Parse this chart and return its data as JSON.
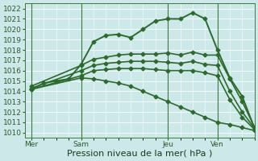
{
  "xlabel": "Pression niveau de la mer( hPa )",
  "bg_color": "#cce8e8",
  "grid_color": "#ffffff",
  "line_color": "#2d6a2d",
  "ylim": [
    1009.5,
    1022.5
  ],
  "yticks": [
    1010,
    1011,
    1012,
    1013,
    1014,
    1015,
    1016,
    1017,
    1018,
    1019,
    1020,
    1021,
    1022
  ],
  "xtick_labels": [
    "Mer",
    "Sam",
    "Jeu",
    "Ven"
  ],
  "xtick_positions": [
    0,
    4,
    11,
    15
  ],
  "vlines": [
    0,
    4,
    11,
    15
  ],
  "xlim": [
    -0.5,
    18
  ],
  "series": [
    {
      "x": [
        0,
        1,
        2,
        3,
        4,
        5,
        6,
        7,
        8,
        9,
        10,
        11,
        12,
        13,
        14,
        15,
        16,
        17,
        18
      ],
      "y": [
        1014.2,
        1014.8,
        1015.0,
        1015.2,
        1016.6,
        1018.8,
        1019.4,
        1019.5,
        1019.2,
        1020.0,
        1020.8,
        1021.0,
        1021.0,
        1021.6,
        1021.0,
        1018.0,
        1015.3,
        1013.5,
        1010.4
      ],
      "marker": "D",
      "markersize": 2.5,
      "linewidth": 1.4
    },
    {
      "x": [
        0,
        4,
        5,
        6,
        7,
        8,
        9,
        10,
        11,
        12,
        13,
        14,
        15,
        16,
        17,
        18
      ],
      "y": [
        1014.5,
        1016.5,
        1017.1,
        1017.3,
        1017.5,
        1017.6,
        1017.6,
        1017.6,
        1017.7,
        1017.5,
        1017.8,
        1017.5,
        1017.5,
        1015.2,
        1013.0,
        1010.5
      ],
      "marker": "D",
      "markersize": 2.5,
      "linewidth": 1.2
    },
    {
      "x": [
        0,
        4,
        5,
        6,
        7,
        8,
        9,
        10,
        11,
        12,
        13,
        14,
        15,
        16,
        17,
        18
      ],
      "y": [
        1014.3,
        1016.0,
        1016.5,
        1016.7,
        1016.8,
        1016.9,
        1016.9,
        1016.9,
        1016.8,
        1016.7,
        1016.9,
        1016.6,
        1016.5,
        1014.0,
        1012.0,
        1010.4
      ],
      "marker": "D",
      "markersize": 2.5,
      "linewidth": 1.2
    },
    {
      "x": [
        0,
        4,
        5,
        6,
        7,
        8,
        9,
        10,
        11,
        12,
        13,
        14,
        15,
        16,
        17,
        18
      ],
      "y": [
        1014.2,
        1015.5,
        1016.0,
        1016.1,
        1016.2,
        1016.2,
        1016.2,
        1016.1,
        1016.0,
        1016.0,
        1016.0,
        1015.8,
        1015.5,
        1013.2,
        1011.5,
        1010.3
      ],
      "marker": "D",
      "markersize": 2.5,
      "linewidth": 1.2
    },
    {
      "x": [
        0,
        4,
        5,
        6,
        7,
        8,
        9,
        10,
        11,
        12,
        13,
        14,
        15,
        16,
        17,
        18
      ],
      "y": [
        1014.2,
        1015.3,
        1015.2,
        1015.0,
        1014.8,
        1014.5,
        1014.0,
        1013.5,
        1013.0,
        1012.5,
        1012.0,
        1011.5,
        1011.0,
        1010.8,
        1010.5,
        1010.2
      ],
      "marker": "D",
      "markersize": 2.5,
      "linewidth": 1.2
    }
  ],
  "fontsize_xlabel": 8,
  "fontsize_tick": 6.5
}
